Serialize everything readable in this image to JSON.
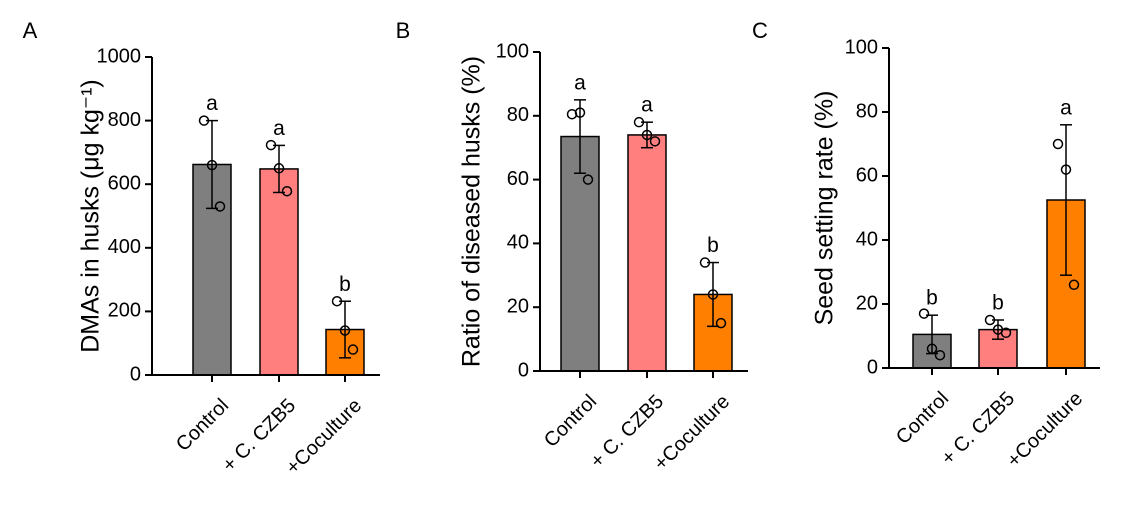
{
  "chart_data": [
    {
      "type": "bar",
      "panel": "A",
      "ylabel": "DMAs in husks (μg kg⁻¹)",
      "categories": [
        "Control",
        "+ C. CZB5",
        "+Coculture"
      ],
      "colors": [
        "#7f7f7f",
        "#ff7f7f",
        "#ff7f00"
      ],
      "values": [
        662,
        648,
        143
      ],
      "errors": [
        138,
        74,
        89
      ],
      "points": [
        [
          800,
          660,
          530
        ],
        [
          723,
          650,
          578
        ],
        [
          232,
          140,
          80
        ]
      ],
      "letters": [
        "a",
        "a",
        "b"
      ],
      "ylim": [
        0,
        1000
      ],
      "yticks": [
        0,
        200,
        400,
        600,
        800,
        1000
      ]
    },
    {
      "type": "bar",
      "panel": "B",
      "ylabel": "Ratio of diseased husks (%)",
      "categories": [
        "Control",
        "+ C. CZB5",
        "+Coculture"
      ],
      "colors": [
        "#7f7f7f",
        "#ff7f7f",
        "#ff7f00"
      ],
      "values": [
        73.5,
        74,
        24
      ],
      "errors": [
        11.5,
        4,
        10
      ],
      "points": [
        [
          80.5,
          81,
          60
        ],
        [
          78,
          74,
          72
        ],
        [
          34,
          24,
          15
        ]
      ],
      "letters": [
        "a",
        "a",
        "b"
      ],
      "ylim": [
        0,
        100
      ],
      "yticks": [
        0,
        20,
        40,
        60,
        80,
        100
      ]
    },
    {
      "type": "bar",
      "panel": "C",
      "ylabel": "Seed setting rate (%)",
      "categories": [
        "Control",
        "+ C. CZB5",
        "+Coculture"
      ],
      "colors": [
        "#7f7f7f",
        "#ff7f7f",
        "#ff7f00"
      ],
      "values": [
        10.5,
        12,
        52.5
      ],
      "errors": [
        6,
        3,
        23.5
      ],
      "points": [
        [
          17,
          6,
          4
        ],
        [
          15,
          12,
          11
        ],
        [
          70,
          62,
          26
        ]
      ],
      "letters": [
        "b",
        "b",
        "a"
      ],
      "ylim": [
        0,
        100
      ],
      "yticks": [
        0,
        20,
        40,
        60,
        80,
        100
      ]
    }
  ]
}
